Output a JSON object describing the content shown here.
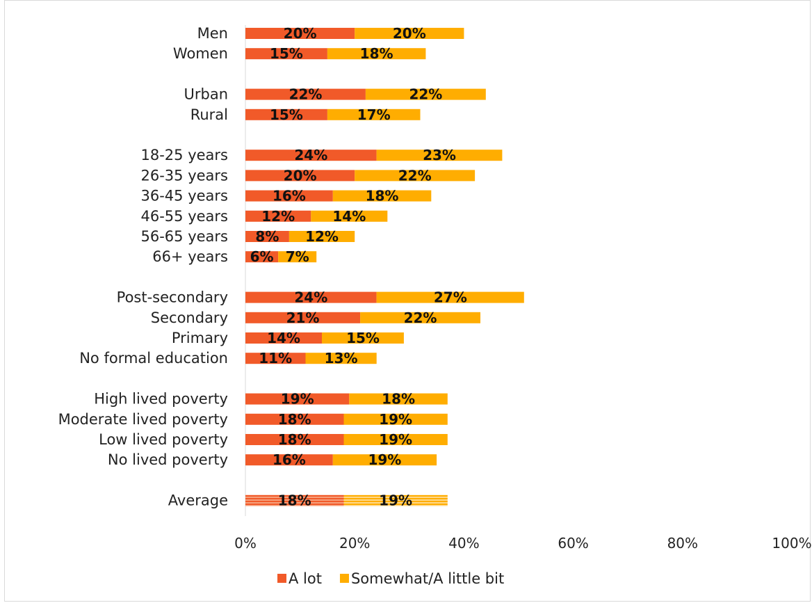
{
  "chart_data": {
    "type": "bar",
    "orientation": "horizontal",
    "stacked": true,
    "categories": [
      "Men",
      "Women",
      "Urban",
      "Rural",
      "18-25 years",
      "26-35 years",
      "36-45 years",
      "46-55 years",
      "56-65 years",
      "66+ years",
      "Post-secondary",
      "Secondary",
      "Primary",
      "No formal education",
      "High lived poverty",
      "Moderate lived poverty",
      "Low lived poverty",
      "No lived poverty",
      "Average"
    ],
    "groups": [
      2,
      2,
      6,
      4,
      4,
      1
    ],
    "series": [
      {
        "name": "A lot",
        "color": "#f15a29",
        "values": [
          20,
          15,
          22,
          15,
          24,
          20,
          16,
          12,
          8,
          6,
          24,
          21,
          14,
          11,
          19,
          18,
          18,
          16,
          18
        ],
        "labels": [
          "20%",
          "15%",
          "22%",
          "15%",
          "24%",
          "20%",
          "16%",
          "12%",
          "8%",
          "6%",
          "24%",
          "21%",
          "14%",
          "11%",
          "19%",
          "18%",
          "18%",
          "16%",
          "18%"
        ]
      },
      {
        "name": "Somewhat/A little bit",
        "color": "#ffad01",
        "values": [
          20,
          18,
          22,
          17,
          23,
          22,
          18,
          14,
          12,
          7,
          27,
          22,
          15,
          13,
          18,
          19,
          19,
          19,
          19
        ],
        "labels": [
          "20%",
          "18%",
          "22%",
          "17%",
          "23%",
          "22%",
          "18%",
          "14%",
          "12%",
          "7%",
          "27%",
          "22%",
          "15%",
          "13%",
          "18%",
          "19%",
          "19%",
          "19%",
          "19%"
        ]
      }
    ],
    "highlighted_category": "Average",
    "xlim": [
      0,
      100
    ],
    "xticks": [
      "0%",
      "20%",
      "40%",
      "60%",
      "80%",
      "100%"
    ],
    "grid": false,
    "legend_position": "bottom",
    "title": "",
    "xlabel": "",
    "ylabel": ""
  }
}
